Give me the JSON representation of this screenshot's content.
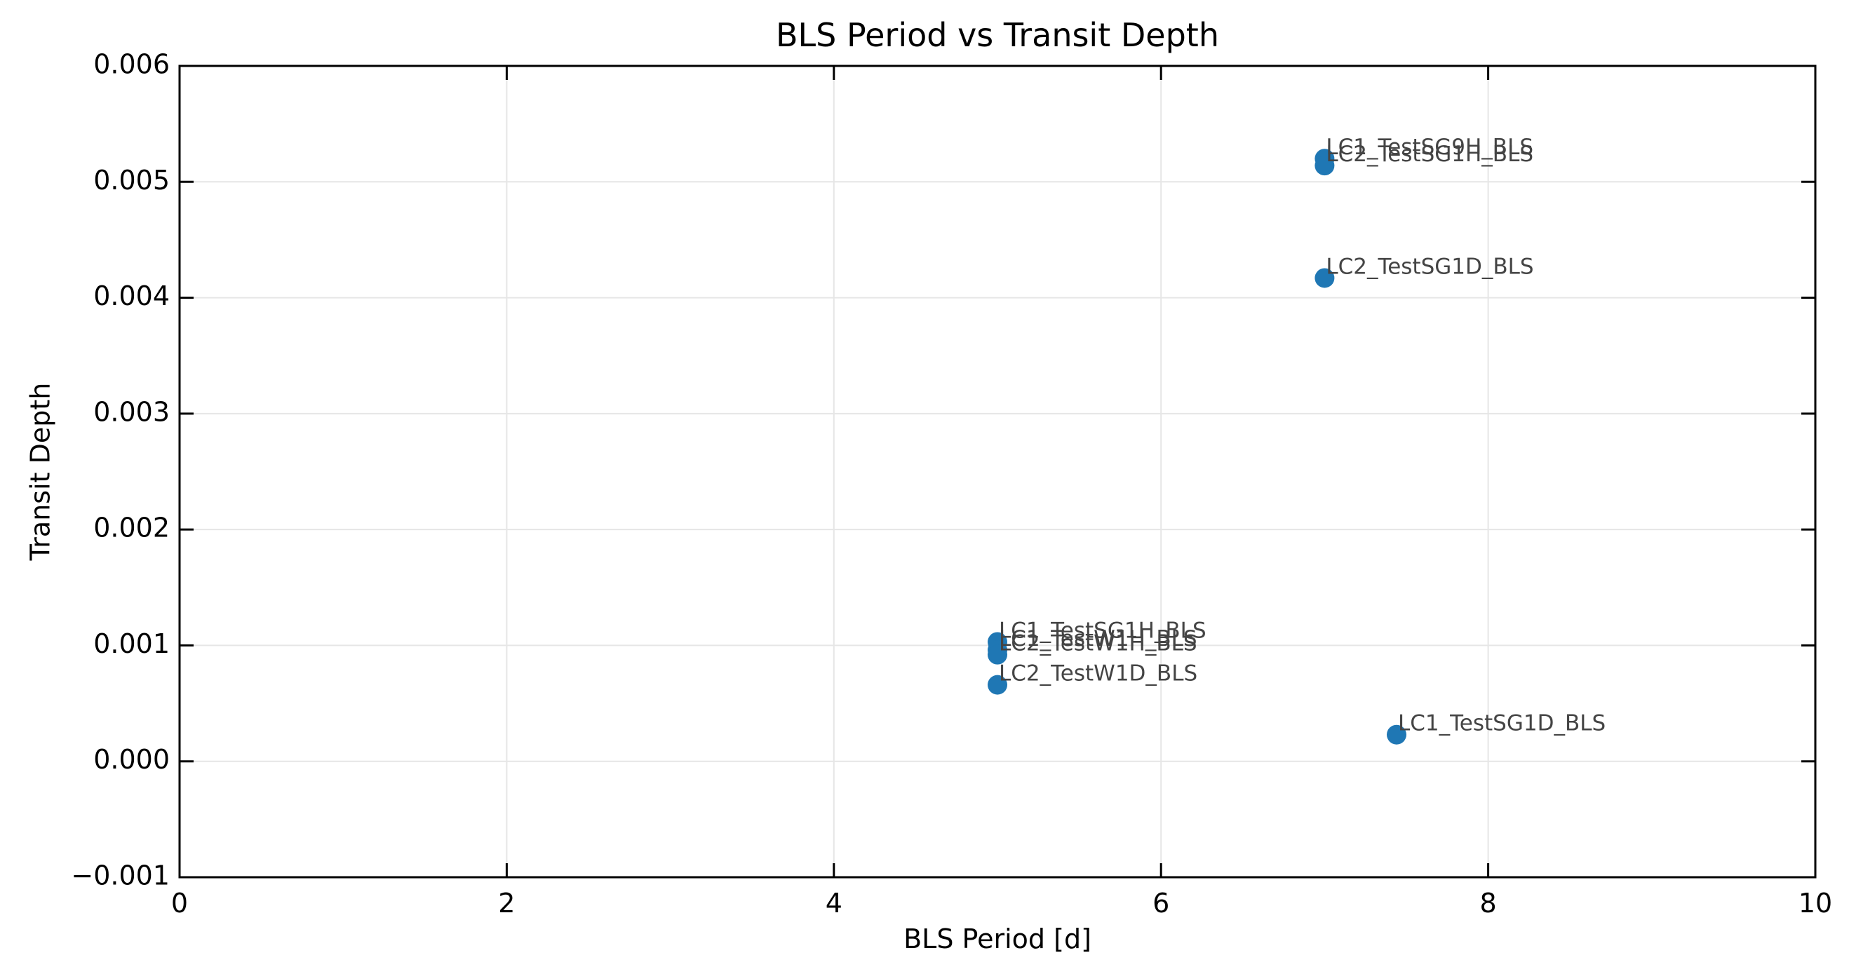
{
  "chart_data": {
    "type": "scatter",
    "title": "BLS Period vs Transit Depth",
    "xlabel": "BLS Period [d]",
    "ylabel": "Transit Depth",
    "xlim": [
      0,
      10
    ],
    "ylim": [
      -0.001,
      0.006
    ],
    "x_ticks": [
      0,
      2,
      4,
      6,
      8,
      10
    ],
    "x_tick_labels": [
      "0",
      "2",
      "4",
      "6",
      "8",
      "10"
    ],
    "y_ticks": [
      -0.001,
      0.0,
      0.001,
      0.002,
      0.003,
      0.004,
      0.005,
      0.006
    ],
    "y_tick_labels": [
      "−0.001",
      "0.000",
      "0.001",
      "0.002",
      "0.003",
      "0.004",
      "0.005",
      "0.006"
    ],
    "grid": true,
    "marker_color": "#1f77b4",
    "label_color": "#444444",
    "points": [
      {
        "label": "LC1_TestSG9H_BLS",
        "x": 7.0,
        "y": 0.0052
      },
      {
        "label": "LC2_TestSG1H_BLS",
        "x": 7.0,
        "y": 0.00514
      },
      {
        "label": "LC2_TestSG1D_BLS",
        "x": 7.0,
        "y": 0.00417
      },
      {
        "label": "LC1_TestSG1H_BLS",
        "x": 5.0,
        "y": 0.00103
      },
      {
        "label": "LC1_TestW1H_BLS",
        "x": 5.0,
        "y": 0.00096
      },
      {
        "label": "LC2_TestW1H_BLS",
        "x": 5.0,
        "y": 0.00092
      },
      {
        "label": "LC2_TestW1D_BLS",
        "x": 5.0,
        "y": 0.00066
      },
      {
        "label": "LC1_TestSG1D_BLS",
        "x": 7.44,
        "y": 0.00023
      }
    ]
  }
}
